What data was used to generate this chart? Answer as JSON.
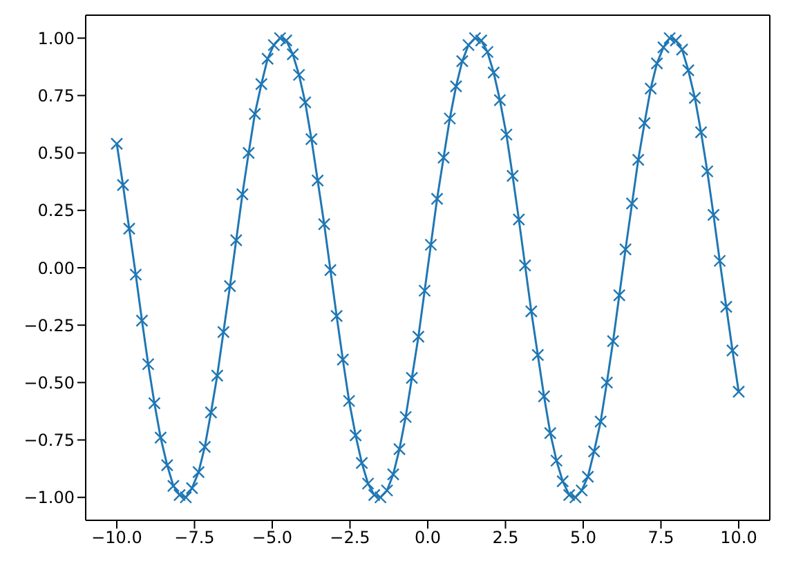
{
  "chart_data": {
    "type": "line",
    "marker": "cross",
    "line_style": "solid",
    "grid": false,
    "xlim": [
      -11,
      11
    ],
    "xticks": [
      {
        "value": -10,
        "label": "−10.0"
      },
      {
        "value": -7.5,
        "label": "−7.5"
      },
      {
        "value": -5,
        "label": "−5.0"
      },
      {
        "value": -2.5,
        "label": "−2.5"
      },
      {
        "value": 0,
        "label": "0.0"
      },
      {
        "value": 2.5,
        "label": "2.5"
      },
      {
        "value": 5,
        "label": "5.0"
      },
      {
        "value": 7.5,
        "label": "7.5"
      },
      {
        "value": 10,
        "label": "10.0"
      }
    ],
    "ylim": [
      -1.1,
      1.1
    ],
    "yticks": [
      {
        "value": -1,
        "label": "−1.00"
      },
      {
        "value": -0.75,
        "label": "−0.75"
      },
      {
        "value": -0.5,
        "label": "−0.50"
      },
      {
        "value": -0.25,
        "label": "−0.25"
      },
      {
        "value": 0,
        "label": "0.00"
      },
      {
        "value": 0.25,
        "label": "0.25"
      },
      {
        "value": 0.5,
        "label": "0.50"
      },
      {
        "value": 0.75,
        "label": "0.75"
      },
      {
        "value": 1,
        "label": "1.00"
      }
    ],
    "x": [
      -10,
      -9.8,
      -9.6,
      -9.39,
      -9.19,
      -8.99,
      -8.79,
      -8.59,
      -8.38,
      -8.18,
      -7.98,
      -7.78,
      -7.58,
      -7.37,
      -7.17,
      -6.97,
      -6.77,
      -6.57,
      -6.36,
      -6.16,
      -5.96,
      -5.76,
      -5.56,
      -5.35,
      -5.15,
      -4.95,
      -4.75,
      -4.55,
      -4.34,
      -4.14,
      -3.94,
      -3.74,
      -3.54,
      -3.33,
      -3.13,
      -2.93,
      -2.73,
      -2.53,
      -2.32,
      -2.12,
      -1.92,
      -1.72,
      -1.52,
      -1.31,
      -1.11,
      -0.91,
      -0.71,
      -0.51,
      -0.3,
      -0.1,
      0.1,
      0.3,
      0.51,
      0.71,
      0.91,
      1.11,
      1.31,
      1.52,
      1.72,
      1.92,
      2.12,
      2.32,
      2.53,
      2.73,
      2.93,
      3.13,
      3.33,
      3.54,
      3.74,
      3.94,
      4.14,
      4.34,
      4.55,
      4.75,
      4.95,
      5.15,
      5.35,
      5.56,
      5.76,
      5.96,
      6.16,
      6.36,
      6.57,
      6.77,
      6.97,
      7.17,
      7.37,
      7.58,
      7.78,
      7.98,
      8.18,
      8.38,
      8.59,
      8.79,
      8.99,
      9.19,
      9.39,
      9.6,
      9.8,
      10
    ],
    "series": [
      {
        "color": "#1f77b4",
        "values": [
          0.54,
          0.36,
          0.17,
          -0.03,
          -0.23,
          -0.42,
          -0.59,
          -0.74,
          -0.86,
          -0.95,
          -0.99,
          -1.0,
          -0.96,
          -0.89,
          -0.78,
          -0.63,
          -0.47,
          -0.28,
          -0.08,
          0.12,
          0.32,
          0.5,
          0.67,
          0.8,
          0.91,
          0.97,
          1.0,
          0.99,
          0.93,
          0.84,
          0.72,
          0.56,
          0.38,
          0.19,
          -0.01,
          -0.21,
          -0.4,
          -0.58,
          -0.73,
          -0.85,
          -0.94,
          -0.99,
          -1.0,
          -0.97,
          -0.9,
          -0.79,
          -0.65,
          -0.48,
          -0.3,
          -0.1,
          0.1,
          0.3,
          0.48,
          0.65,
          0.79,
          0.9,
          0.97,
          1.0,
          0.99,
          0.94,
          0.85,
          0.73,
          0.58,
          0.4,
          0.21,
          0.01,
          -0.19,
          -0.38,
          -0.56,
          -0.72,
          -0.84,
          -0.93,
          -0.99,
          -1.0,
          -0.97,
          -0.91,
          -0.8,
          -0.67,
          -0.5,
          -0.32,
          -0.12,
          0.08,
          0.28,
          0.47,
          0.63,
          0.78,
          0.89,
          0.96,
          1.0,
          0.99,
          0.95,
          0.86,
          0.74,
          0.59,
          0.42,
          0.23,
          0.03,
          -0.17,
          -0.36,
          -0.54
        ]
      }
    ]
  }
}
